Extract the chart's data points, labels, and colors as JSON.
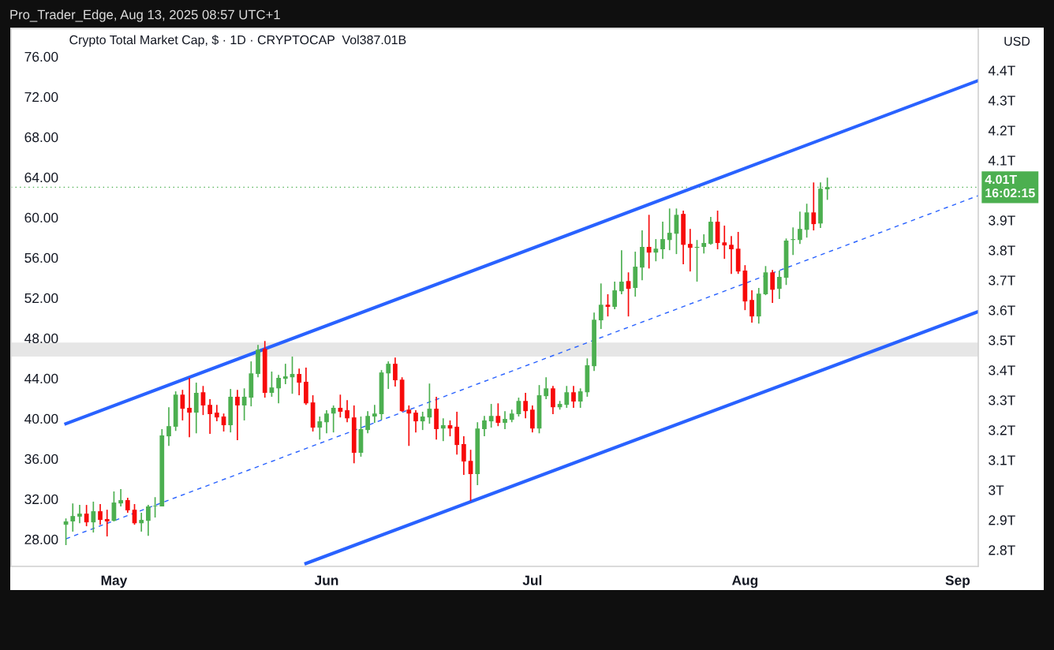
{
  "chart_data": {
    "type": "candlestick",
    "title": "Crypto Total Market Cap, $ · 1D · CRYPTOCAP  Vol387.01B",
    "ylabel": "USD",
    "annotations": [
      "Pro_Trader_Edge, Aug 13, 2025 08:57 UTC+1",
      "16:02:15"
    ],
    "x": [
      "2025-04-24",
      "2025-04-25",
      "2025-04-26",
      "2025-04-27",
      "2025-04-28",
      "2025-04-29",
      "2025-04-30",
      "2025-05-01",
      "2025-05-02",
      "2025-05-03",
      "2025-05-04",
      "2025-05-05",
      "2025-05-06",
      "2025-05-07",
      "2025-05-08",
      "2025-05-09",
      "2025-05-10",
      "2025-05-11",
      "2025-05-12",
      "2025-05-13",
      "2025-05-14",
      "2025-05-15",
      "2025-05-16",
      "2025-05-17",
      "2025-05-18",
      "2025-05-19",
      "2025-05-20",
      "2025-05-21",
      "2025-05-22",
      "2025-05-23",
      "2025-05-24",
      "2025-05-25",
      "2025-05-26",
      "2025-05-27",
      "2025-05-28",
      "2025-05-29",
      "2025-05-30",
      "2025-05-31",
      "2025-06-01",
      "2025-06-02",
      "2025-06-03",
      "2025-06-04",
      "2025-06-05",
      "2025-06-06",
      "2025-06-07",
      "2025-06-08",
      "2025-06-09",
      "2025-06-10",
      "2025-06-11",
      "2025-06-12",
      "2025-06-13",
      "2025-06-14",
      "2025-06-15",
      "2025-06-16",
      "2025-06-17",
      "2025-06-18",
      "2025-06-19",
      "2025-06-20",
      "2025-06-21",
      "2025-06-22",
      "2025-06-23",
      "2025-06-24",
      "2025-06-25",
      "2025-06-26",
      "2025-06-27",
      "2025-06-28",
      "2025-06-29",
      "2025-06-30",
      "2025-07-01",
      "2025-07-02",
      "2025-07-03",
      "2025-07-04",
      "2025-07-05",
      "2025-07-06",
      "2025-07-07",
      "2025-07-08",
      "2025-07-09",
      "2025-07-10",
      "2025-07-11",
      "2025-07-12",
      "2025-07-13",
      "2025-07-14",
      "2025-07-15",
      "2025-07-16",
      "2025-07-17",
      "2025-07-18",
      "2025-07-19",
      "2025-07-20",
      "2025-07-21",
      "2025-07-22",
      "2025-07-23",
      "2025-07-24",
      "2025-07-25",
      "2025-07-26",
      "2025-07-27",
      "2025-07-28",
      "2025-07-29",
      "2025-07-30",
      "2025-07-31",
      "2025-08-01",
      "2025-08-02",
      "2025-08-03",
      "2025-08-04",
      "2025-08-05",
      "2025-08-06",
      "2025-08-07",
      "2025-08-08",
      "2025-08-09",
      "2025-08-10",
      "2025-08-11",
      "2025-08-12",
      "2025-08-13"
    ],
    "colors": [
      "#4caf50",
      "#4caf50",
      "#4caf50",
      "#f70a0a",
      "#4caf50",
      "#f70a0a",
      "#f70a0a",
      "#4caf50",
      "#4caf50",
      "#f70a0a",
      "#f70a0a",
      "#4caf50",
      "#4caf50",
      "#4caf50",
      "#4caf50",
      "#4caf50",
      "#4caf50",
      "#f70a0a",
      "#f70a0a",
      "#4caf50",
      "#f70a0a",
      "#f70a0a",
      "#f70a0a",
      "#f70a0a",
      "#4caf50",
      "#f70a0a",
      "#4caf50",
      "#4caf50",
      "#4caf50",
      "#f70a0a",
      "#4caf50",
      "#4caf50",
      "#4caf50",
      "#4caf50",
      "#f70a0a",
      "#f70a0a",
      "#f70a0a",
      "#4caf50",
      "#4caf50",
      "#4caf50",
      "#f70a0a",
      "#f70a0a",
      "#f70a0a",
      "#4caf50",
      "#4caf50",
      "#4caf50",
      "#4caf50",
      "#4caf50",
      "#f70a0a",
      "#f70a0a",
      "#f70a0a",
      "#f70a0a",
      "#4caf50",
      "#4caf50",
      "#f70a0a",
      "#4caf50",
      "#f70a0a",
      "#f70a0a",
      "#f70a0a",
      "#f70a0a",
      "#4caf50",
      "#4caf50",
      "#4caf50",
      "#f70a0a",
      "#4caf50",
      "#4caf50",
      "#4caf50",
      "#f70a0a",
      "#f70a0a",
      "#4caf50",
      "#4caf50",
      "#f70a0a",
      "#4caf50",
      "#4caf50",
      "#f70a0a",
      "#4caf50",
      "#4caf50",
      "#4caf50",
      "#4caf50",
      "#f70a0a",
      "#4caf50",
      "#4caf50",
      "#f70a0a",
      "#4caf50",
      "#4caf50",
      "#f70a0a",
      "#4caf50",
      "#4caf50",
      "#4caf50",
      "#4caf50",
      "#f70a0a",
      "#f70a0a",
      "#4caf50",
      "#4caf50",
      "#4caf50",
      "#f70a0a",
      "#f70a0a",
      "#f70a0a",
      "#f70a0a",
      "#f70a0a",
      "#f70a0a",
      "#4caf50",
      "#4caf50",
      "#f70a0a",
      "#4caf50",
      "#4caf50",
      "#4caf50",
      "#4caf50",
      "#4caf50",
      "#f70a0a",
      "#4caf50",
      "#4caf50"
    ],
    "ohlc": [
      [
        2.884,
        2.905,
        2.816,
        2.895
      ],
      [
        2.895,
        2.955,
        2.861,
        2.913
      ],
      [
        2.911,
        2.95,
        2.889,
        2.921
      ],
      [
        2.921,
        2.95,
        2.879,
        2.892
      ],
      [
        2.892,
        2.961,
        2.858,
        2.929
      ],
      [
        2.929,
        2.953,
        2.884,
        2.9
      ],
      [
        2.903,
        2.934,
        2.845,
        2.895
      ],
      [
        2.897,
        2.995,
        2.895,
        2.958
      ],
      [
        2.955,
        3.003,
        2.945,
        2.966
      ],
      [
        2.966,
        2.974,
        2.924,
        2.932
      ],
      [
        2.934,
        2.953,
        2.884,
        2.889
      ],
      [
        2.889,
        2.924,
        2.861,
        2.9
      ],
      [
        2.897,
        2.95,
        2.847,
        2.945
      ],
      [
        2.945,
        2.976,
        2.908,
        2.947
      ],
      [
        2.945,
        3.203,
        2.945,
        3.182
      ],
      [
        3.179,
        3.276,
        3.147,
        3.213
      ],
      [
        3.211,
        3.329,
        3.197,
        3.318
      ],
      [
        3.318,
        3.334,
        3.232,
        3.271
      ],
      [
        3.274,
        3.374,
        3.176,
        3.258
      ],
      [
        3.258,
        3.358,
        3.189,
        3.324
      ],
      [
        3.326,
        3.347,
        3.25,
        3.282
      ],
      [
        3.284,
        3.303,
        3.187,
        3.253
      ],
      [
        3.258,
        3.284,
        3.229,
        3.242
      ],
      [
        3.245,
        3.255,
        3.195,
        3.216
      ],
      [
        3.216,
        3.337,
        3.192,
        3.311
      ],
      [
        3.311,
        3.334,
        3.166,
        3.282
      ],
      [
        3.282,
        3.339,
        3.232,
        3.311
      ],
      [
        3.308,
        3.429,
        3.279,
        3.389
      ],
      [
        3.387,
        3.484,
        3.376,
        3.468
      ],
      [
        3.471,
        3.497,
        3.308,
        3.324
      ],
      [
        3.324,
        3.395,
        3.311,
        3.342
      ],
      [
        3.339,
        3.384,
        3.289,
        3.374
      ],
      [
        3.371,
        3.421,
        3.353,
        3.379
      ],
      [
        3.376,
        3.445,
        3.321,
        3.387
      ],
      [
        3.387,
        3.405,
        3.316,
        3.358
      ],
      [
        3.361,
        3.408,
        3.284,
        3.289
      ],
      [
        3.292,
        3.316,
        3.195,
        3.208
      ],
      [
        3.208,
        3.245,
        3.168,
        3.229
      ],
      [
        3.226,
        3.266,
        3.189,
        3.255
      ],
      [
        3.255,
        3.282,
        3.192,
        3.274
      ],
      [
        3.274,
        3.318,
        3.242,
        3.261
      ],
      [
        3.266,
        3.3,
        3.226,
        3.239
      ],
      [
        3.242,
        3.282,
        3.089,
        3.124
      ],
      [
        3.124,
        3.245,
        3.111,
        3.203
      ],
      [
        3.2,
        3.263,
        3.189,
        3.247
      ],
      [
        3.245,
        3.284,
        3.224,
        3.255
      ],
      [
        3.253,
        3.4,
        3.234,
        3.392
      ],
      [
        3.389,
        3.429,
        3.337,
        3.421
      ],
      [
        3.421,
        3.442,
        3.345,
        3.366
      ],
      [
        3.368,
        3.376,
        3.261,
        3.263
      ],
      [
        3.268,
        3.282,
        3.147,
        3.255
      ],
      [
        3.258,
        3.266,
        3.192,
        3.229
      ],
      [
        3.229,
        3.261,
        3.2,
        3.245
      ],
      [
        3.242,
        3.355,
        3.221,
        3.271
      ],
      [
        3.271,
        3.311,
        3.168,
        3.203
      ],
      [
        3.205,
        3.239,
        3.163,
        3.216
      ],
      [
        3.216,
        3.232,
        3.179,
        3.205
      ],
      [
        3.211,
        3.261,
        3.118,
        3.15
      ],
      [
        3.153,
        3.179,
        3.05,
        3.095
      ],
      [
        3.097,
        3.134,
        2.963,
        3.053
      ],
      [
        3.053,
        3.226,
        3.016,
        3.205
      ],
      [
        3.203,
        3.247,
        3.179,
        3.232
      ],
      [
        3.229,
        3.287,
        3.208,
        3.247
      ],
      [
        3.247,
        3.289,
        3.213,
        3.224
      ],
      [
        3.224,
        3.263,
        3.203,
        3.237
      ],
      [
        3.234,
        3.268,
        3.226,
        3.255
      ],
      [
        3.253,
        3.308,
        3.245,
        3.297
      ],
      [
        3.297,
        3.324,
        3.239,
        3.263
      ],
      [
        3.268,
        3.282,
        3.192,
        3.205
      ],
      [
        3.205,
        3.35,
        3.189,
        3.316
      ],
      [
        3.313,
        3.376,
        3.303,
        3.339
      ],
      [
        3.339,
        3.347,
        3.253,
        3.276
      ],
      [
        3.276,
        3.297,
        3.268,
        3.287
      ],
      [
        3.284,
        3.347,
        3.274,
        3.326
      ],
      [
        3.326,
        3.347,
        3.274,
        3.295
      ],
      [
        3.295,
        3.339,
        3.274,
        3.329
      ],
      [
        3.326,
        3.439,
        3.311,
        3.416
      ],
      [
        3.413,
        3.592,
        3.397,
        3.568
      ],
      [
        3.566,
        3.689,
        3.537,
        3.618
      ],
      [
        3.618,
        3.653,
        3.579,
        3.611
      ],
      [
        3.611,
        3.695,
        3.603,
        3.666
      ],
      [
        3.663,
        3.8,
        3.653,
        3.695
      ],
      [
        3.697,
        3.726,
        3.579,
        3.671
      ],
      [
        3.674,
        3.795,
        3.645,
        3.745
      ],
      [
        3.742,
        3.866,
        3.7,
        3.811
      ],
      [
        3.811,
        3.918,
        3.739,
        3.792
      ],
      [
        3.792,
        3.837,
        3.763,
        3.805
      ],
      [
        3.803,
        3.895,
        3.771,
        3.837
      ],
      [
        3.834,
        3.939,
        3.8,
        3.858
      ],
      [
        3.855,
        3.939,
        3.787,
        3.918
      ],
      [
        3.921,
        3.932,
        3.753,
        3.818
      ],
      [
        3.821,
        3.871,
        3.729,
        3.808
      ],
      [
        3.808,
        3.834,
        3.695,
        3.811
      ],
      [
        3.811,
        3.853,
        3.789,
        3.824
      ],
      [
        3.821,
        3.911,
        3.818,
        3.895
      ],
      [
        3.895,
        3.932,
        3.803,
        3.824
      ],
      [
        3.826,
        3.882,
        3.771,
        3.816
      ],
      [
        3.818,
        3.847,
        3.721,
        3.803
      ],
      [
        3.805,
        3.861,
        3.721,
        3.729
      ],
      [
        3.732,
        3.75,
        3.6,
        3.629
      ],
      [
        3.634,
        3.666,
        3.558,
        3.579
      ],
      [
        3.579,
        3.674,
        3.555,
        3.655
      ],
      [
        3.653,
        3.747,
        3.65,
        3.726
      ],
      [
        3.726,
        3.734,
        3.624,
        3.668
      ],
      [
        3.671,
        3.732,
        3.637,
        3.711
      ],
      [
        3.708,
        3.839,
        3.684,
        3.832
      ],
      [
        3.834,
        3.876,
        3.784,
        3.837
      ],
      [
        3.834,
        3.929,
        3.821,
        3.871
      ],
      [
        3.868,
        3.955,
        3.842,
        3.926
      ],
      [
        3.926,
        4.026,
        3.866,
        3.887
      ],
      [
        3.889,
        4.026,
        3.874,
        4.005
      ],
      [
        4.003,
        4.042,
        3.968,
        4.011
      ]
    ],
    "series": [
      {
        "type": "line",
        "x": [
          "2025-04-24",
          "2025-09-04"
        ],
        "values": [
          3.221,
          4.366
        ],
        "color": "#2962ff",
        "line_style": "solid"
      },
      {
        "type": "line",
        "x": [
          "2025-05-29",
          "2025-09-04"
        ],
        "values": [
          2.755,
          3.595
        ],
        "color": "#2962ff",
        "line_style": "solid"
      },
      {
        "type": "line",
        "x": [
          "2025-04-24",
          "2025-09-04"
        ],
        "values": [
          2.837,
          3.982
        ],
        "color": "#2962ff",
        "line_style": "dashed"
      }
    ],
    "ref_lines": [
      {
        "axis": "y",
        "value": 4.01,
        "label": "4.01T",
        "color": "#4caf50",
        "line_style": "dotted"
      }
    ],
    "bands": [
      {
        "axis": "y",
        "from": 3.445,
        "to": 3.492,
        "color": "#e6e6e6"
      }
    ],
    "xlim": [
      "2025-04-16",
      "2025-09-04"
    ],
    "xticks": [
      {
        "value": "2025-05-01",
        "label": "May"
      },
      {
        "value": "2025-06-01",
        "label": "Jun"
      },
      {
        "value": "2025-07-01",
        "label": "Jul"
      },
      {
        "value": "2025-08-01",
        "label": "Aug"
      },
      {
        "value": "2025-09-01",
        "label": "Sep"
      }
    ],
    "ylim": [
      2.745,
      4.54
    ],
    "yticks": [
      {
        "value": 2.8,
        "label": "2.8T"
      },
      {
        "value": 2.9,
        "label": "2.9T"
      },
      {
        "value": 3.0,
        "label": "3T"
      },
      {
        "value": 3.1,
        "label": "3.1T"
      },
      {
        "value": 3.2,
        "label": "3.2T"
      },
      {
        "value": 3.3,
        "label": "3.3T"
      },
      {
        "value": 3.4,
        "label": "3.4T"
      },
      {
        "value": 3.5,
        "label": "3.5T"
      },
      {
        "value": 3.6,
        "label": "3.6T"
      },
      {
        "value": 3.7,
        "label": "3.7T"
      },
      {
        "value": 3.8,
        "label": "3.8T"
      },
      {
        "value": 3.9,
        "label": "3.9T"
      },
      {
        "value": 4.1,
        "label": "4.1T"
      },
      {
        "value": 4.2,
        "label": "4.2T"
      },
      {
        "value": 4.3,
        "label": "4.3T"
      },
      {
        "value": 4.4,
        "label": "4.4T"
      }
    ],
    "y2lim": [
      25.3,
      78.8
    ],
    "y2ticks": [
      {
        "value": 28,
        "label": "28.00"
      },
      {
        "value": 32,
        "label": "32.00"
      },
      {
        "value": 36,
        "label": "36.00"
      },
      {
        "value": 40,
        "label": "40.00"
      },
      {
        "value": 44,
        "label": "44.00"
      },
      {
        "value": 48,
        "label": "48.00"
      },
      {
        "value": 52,
        "label": "52.00"
      },
      {
        "value": 56,
        "label": "56.00"
      },
      {
        "value": 60,
        "label": "60.00"
      },
      {
        "value": 64,
        "label": "64.00"
      },
      {
        "value": 68,
        "label": "68.00"
      },
      {
        "value": 72,
        "label": "72.00"
      },
      {
        "value": 76,
        "label": "76.00"
      }
    ],
    "grid": false,
    "legend": false
  }
}
